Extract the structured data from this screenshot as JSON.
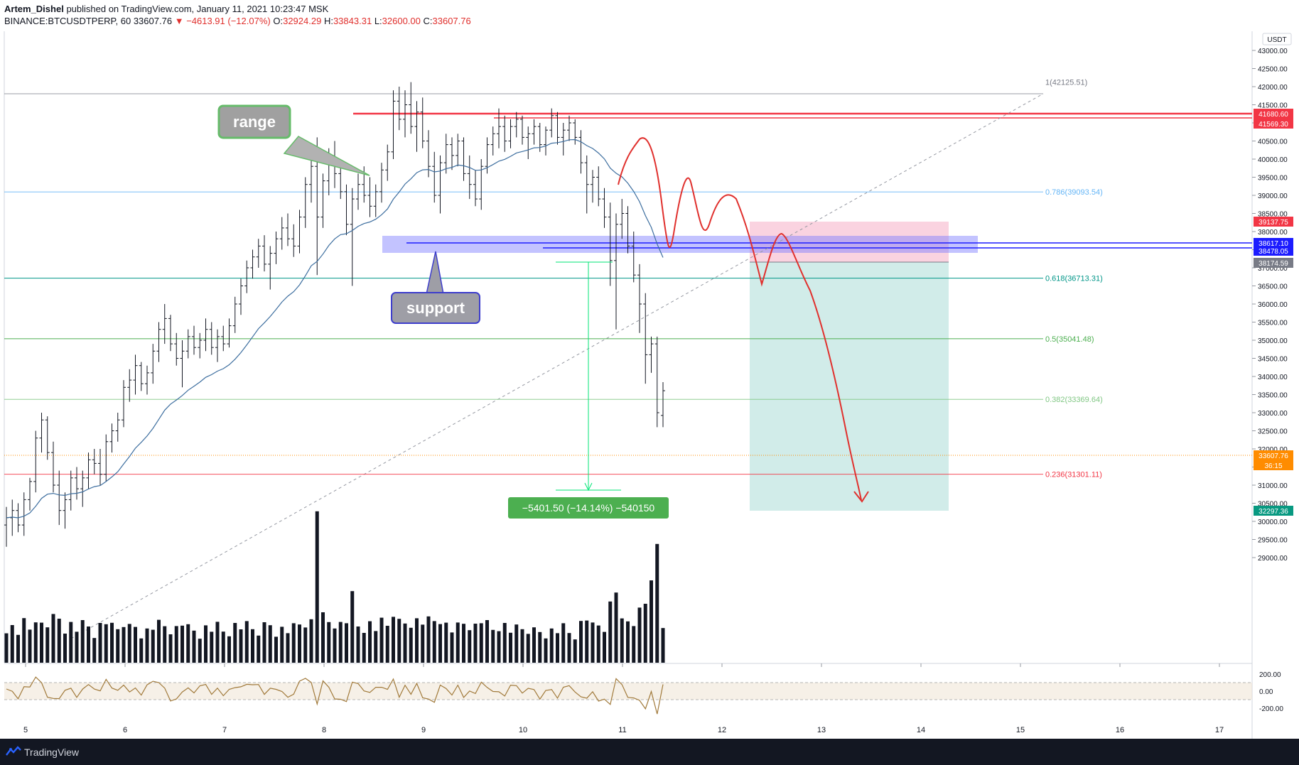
{
  "header": {
    "author": "Artem_Dishel",
    "published_text": "published on TradingView.com, January 11, 2021 10:23:47 MSK",
    "symbol": "BINANCE:BTCUSDTPERP, 60",
    "last": "33607.76",
    "change": "−4613.91 (−12.07%)",
    "o_label": "O:",
    "o": "32924.29",
    "h_label": "H:",
    "h": "33843.31",
    "l_label": "L:",
    "l": "32600.00",
    "c_label": "C:",
    "c": "33607.76"
  },
  "footer": {
    "brand": "TradingView"
  },
  "chart_data": {
    "type": "line",
    "price_axis": {
      "currency": "USDT",
      "range": [
        28700,
        43700
      ],
      "ticks": [
        "43000.00",
        "42500.00",
        "42000.00",
        "41500.00",
        "41000.00",
        "40500.00",
        "40000.00",
        "39500.00",
        "39000.00",
        "38500.00",
        "38000.00",
        "37500.00",
        "37000.00",
        "36500.00",
        "36000.00",
        "35500.00",
        "35000.00",
        "34500.00",
        "34000.00",
        "33500.00",
        "33000.00",
        "32500.00",
        "32000.00",
        "31500.00",
        "31000.00",
        "30500.00",
        "30000.00",
        "29500.00",
        "29000.00"
      ]
    },
    "time_axis": {
      "ticks": [
        "5",
        "6",
        "7",
        "8",
        "9",
        "10",
        "11",
        "12",
        "13",
        "14",
        "15",
        "16",
        "17"
      ]
    },
    "price_labels": [
      {
        "value": "41680.60",
        "color": "#f23645"
      },
      {
        "value": "41569.30",
        "color": "#f23645"
      },
      {
        "value": "39137.75",
        "color": "#f23645"
      },
      {
        "value": "38617.10",
        "color": "#1c1cff"
      },
      {
        "value": "38478.05",
        "color": "#1c1cff"
      },
      {
        "value": "38174.59",
        "color": "#787b86"
      },
      {
        "value": "33607.76",
        "color": "#ff8c00"
      },
      {
        "value": "36:15",
        "color": "#ff8c00"
      },
      {
        "value": "32297.36",
        "color": "#089981"
      }
    ],
    "fib_levels": [
      {
        "label": "1(42125.51)",
        "price": 42125.51,
        "color": "#787b86"
      },
      {
        "label": "0.786(39093.54)",
        "price": 39093.54,
        "color": "#64b5f6"
      },
      {
        "label": "0.618(36713.31)",
        "price": 36713.31,
        "color": "#009688"
      },
      {
        "label": "0.5(35041.48)",
        "price": 35041.48,
        "color": "#4caf50"
      },
      {
        "label": "0.382(33369.64)",
        "price": 33369.64,
        "color": "#81c784"
      },
      {
        "label": "0.236(31301.11)",
        "price": 31301.11,
        "color": "#f23645"
      }
    ],
    "annotations": {
      "range_label": "range",
      "support_label": "support",
      "measure_label": "−5401.50 (−14.14%) −540150"
    },
    "volume_axis": {
      "ticks": [
        "200.00",
        "0.00",
        "-200.00"
      ]
    },
    "series": [
      {
        "name": "BTCUSDTPERP 60",
        "ohlc": [
          [
            29900,
            30400,
            29300,
            30100
          ],
          [
            30100,
            30600,
            29600,
            30300
          ],
          [
            30300,
            30500,
            29700,
            29900
          ],
          [
            29900,
            30800,
            29600,
            30600
          ],
          [
            30600,
            31200,
            30300,
            31100
          ],
          [
            31100,
            32500,
            30800,
            32300
          ],
          [
            32300,
            33000,
            31900,
            32800
          ],
          [
            32800,
            32900,
            31700,
            31900
          ],
          [
            31900,
            32200,
            30800,
            31000
          ],
          [
            31000,
            31400,
            29900,
            30300
          ],
          [
            30300,
            30800,
            29800,
            30600
          ],
          [
            30600,
            31400,
            30300,
            31200
          ],
          [
            31200,
            31500,
            30600,
            30900
          ],
          [
            30900,
            31400,
            30400,
            31200
          ],
          [
            31200,
            31900,
            30900,
            31700
          ],
          [
            31700,
            32000,
            31300,
            31600
          ],
          [
            31600,
            32000,
            31000,
            31300
          ],
          [
            31300,
            32400,
            31100,
            32200
          ],
          [
            32200,
            32700,
            31900,
            32500
          ],
          [
            32500,
            33000,
            32200,
            32800
          ],
          [
            32800,
            33900,
            32600,
            33700
          ],
          [
            33700,
            34200,
            33300,
            33900
          ],
          [
            33900,
            34600,
            33500,
            34300
          ],
          [
            34300,
            34400,
            33600,
            33800
          ],
          [
            33800,
            34300,
            33500,
            34100
          ],
          [
            34100,
            34900,
            33800,
            34700
          ],
          [
            34700,
            35500,
            34400,
            35300
          ],
          [
            35300,
            36000,
            34900,
            35600
          ],
          [
            35600,
            35700,
            34700,
            34900
          ],
          [
            34900,
            35200,
            34300,
            34500
          ],
          [
            34500,
            35000,
            33700,
            34700
          ],
          [
            34700,
            35300,
            34500,
            35100
          ],
          [
            35100,
            35400,
            34600,
            34800
          ],
          [
            34800,
            35200,
            34500,
            35000
          ],
          [
            35000,
            35600,
            34700,
            35300
          ],
          [
            35300,
            35500,
            34600,
            34800
          ],
          [
            34800,
            35300,
            34400,
            35100
          ],
          [
            35100,
            35400,
            34700,
            34900
          ],
          [
            34900,
            35600,
            34800,
            35400
          ],
          [
            35400,
            36200,
            35200,
            36000
          ],
          [
            36000,
            36700,
            35700,
            36500
          ],
          [
            36500,
            37200,
            36300,
            37000
          ],
          [
            37000,
            37500,
            36700,
            37300
          ],
          [
            37300,
            37800,
            37000,
            37600
          ],
          [
            37600,
            37900,
            36900,
            37100
          ],
          [
            37100,
            37600,
            36400,
            37400
          ],
          [
            37400,
            38000,
            37100,
            37800
          ],
          [
            37800,
            38400,
            37500,
            38100
          ],
          [
            38100,
            38500,
            37600,
            37800
          ],
          [
            37800,
            38200,
            37300,
            37600
          ],
          [
            37600,
            38600,
            37400,
            38400
          ],
          [
            38400,
            39500,
            38100,
            39300
          ],
          [
            39300,
            40100,
            38800,
            39800
          ],
          [
            39800,
            40600,
            36800,
            38400
          ],
          [
            38400,
            39600,
            38100,
            39400
          ],
          [
            39400,
            40300,
            39000,
            40000
          ],
          [
            40000,
            40500,
            39200,
            39600
          ],
          [
            39600,
            40000,
            38900,
            39100
          ],
          [
            39100,
            39300,
            37900,
            38200
          ],
          [
            38200,
            39200,
            36500,
            38900
          ],
          [
            38900,
            39600,
            38600,
            39300
          ],
          [
            39300,
            39800,
            38800,
            39000
          ],
          [
            39000,
            39500,
            38400,
            38700
          ],
          [
            38700,
            39300,
            38400,
            39100
          ],
          [
            39100,
            39900,
            38800,
            39700
          ],
          [
            39700,
            40400,
            39400,
            40200
          ],
          [
            40200,
            41900,
            40000,
            41600
          ],
          [
            41600,
            42000,
            40800,
            41100
          ],
          [
            41100,
            41900,
            40600,
            41500
          ],
          [
            41500,
            42125,
            40700,
            40900
          ],
          [
            40900,
            41600,
            40200,
            41300
          ],
          [
            41300,
            41700,
            40300,
            40500
          ],
          [
            40500,
            40800,
            39500,
            39800
          ],
          [
            39800,
            40200,
            38800,
            39000
          ],
          [
            39000,
            40100,
            38500,
            39900
          ],
          [
            39900,
            40700,
            39600,
            40400
          ],
          [
            40400,
            40600,
            39700,
            40100
          ],
          [
            40100,
            40700,
            39800,
            40500
          ],
          [
            40500,
            40600,
            39400,
            39600
          ],
          [
            39600,
            40100,
            38900,
            39300
          ],
          [
            39300,
            39700,
            38700,
            38900
          ],
          [
            38900,
            40000,
            38600,
            39800
          ],
          [
            39800,
            40600,
            39600,
            40400
          ],
          [
            40400,
            40900,
            40100,
            40700
          ],
          [
            40700,
            41400,
            40300,
            40900
          ],
          [
            40900,
            41200,
            40200,
            40500
          ],
          [
            40500,
            41100,
            40300,
            40900
          ],
          [
            40900,
            41300,
            40600,
            41100
          ],
          [
            41100,
            41200,
            40400,
            40600
          ],
          [
            40600,
            40900,
            40000,
            40700
          ],
          [
            40700,
            41100,
            40400,
            40900
          ],
          [
            40900,
            41000,
            40200,
            40400
          ],
          [
            40400,
            40900,
            40100,
            40800
          ],
          [
            40800,
            41400,
            40600,
            41200
          ],
          [
            41200,
            41300,
            40400,
            40600
          ],
          [
            40600,
            41000,
            40100,
            40800
          ],
          [
            40800,
            41200,
            40500,
            41000
          ],
          [
            41000,
            41100,
            40400,
            40600
          ],
          [
            40600,
            40800,
            39600,
            39900
          ],
          [
            39900,
            40100,
            38500,
            39300
          ],
          [
            39300,
            39700,
            38800,
            39500
          ],
          [
            39500,
            39800,
            38700,
            38900
          ],
          [
            38900,
            39200,
            38100,
            38400
          ],
          [
            38400,
            38800,
            36500,
            37200
          ],
          [
            37200,
            38500,
            35300,
            38200
          ],
          [
            38200,
            38900,
            37800,
            38500
          ],
          [
            38500,
            38700,
            37400,
            37600
          ],
          [
            37600,
            38000,
            36600,
            36800
          ],
          [
            36800,
            37100,
            35200,
            36000
          ],
          [
            36000,
            36300,
            33800,
            34600
          ],
          [
            34600,
            35100,
            34100,
            34900
          ],
          [
            34900,
            35100,
            32600,
            33000
          ],
          [
            32924,
            33843,
            32600,
            33607
          ]
        ]
      },
      {
        "name": "EMA",
        "values": []
      }
    ]
  }
}
